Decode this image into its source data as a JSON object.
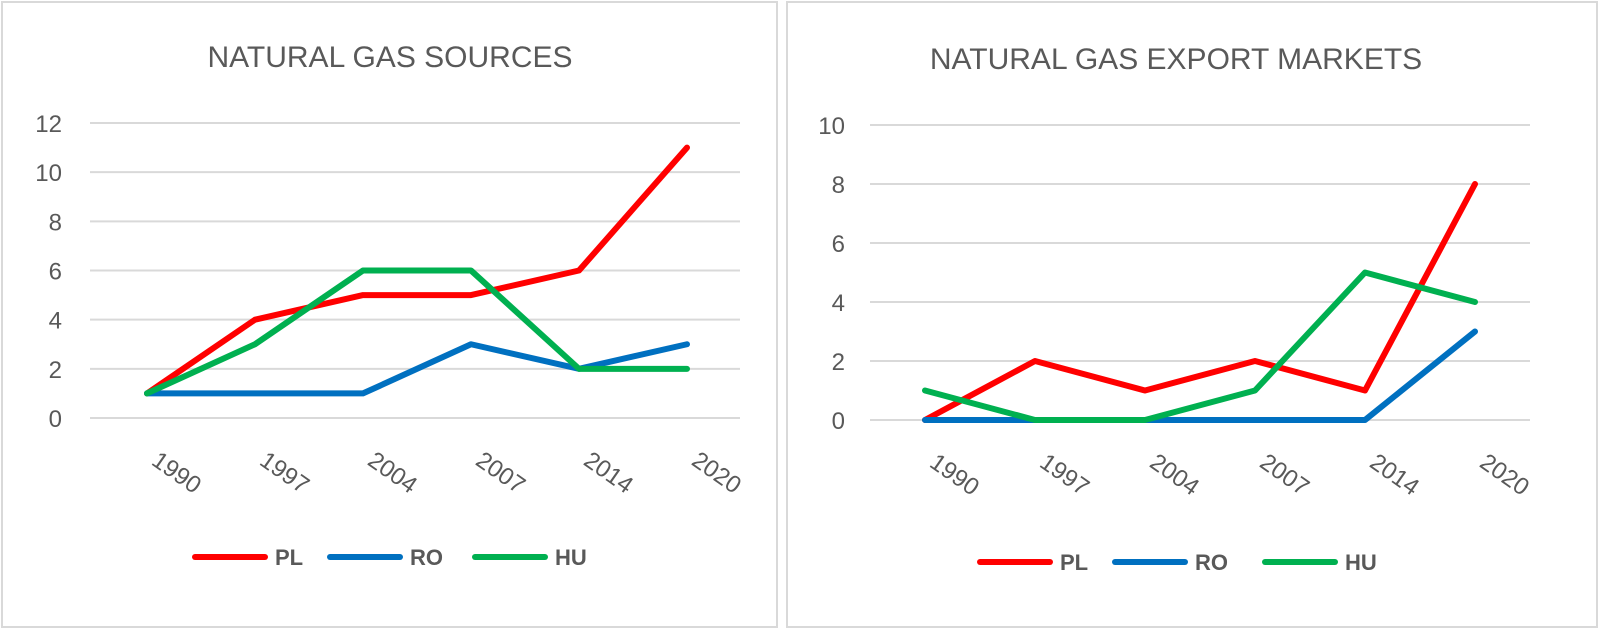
{
  "chart_data": [
    {
      "type": "line",
      "title": "NATURAL GAS SOURCES",
      "categories": [
        "1990",
        "1997",
        "2004",
        "2007",
        "2014",
        "2020"
      ],
      "ylim": [
        0,
        12
      ],
      "yticks": [
        "0",
        "2",
        "4",
        "6",
        "8",
        "10",
        "12"
      ],
      "grid": true,
      "legend_position": "bottom",
      "series": [
        {
          "name": "PL",
          "color": "#ff0000",
          "values": [
            1,
            4,
            5,
            5,
            6,
            11
          ]
        },
        {
          "name": "RO",
          "color": "#0070c0",
          "values": [
            1,
            1,
            1,
            3,
            2,
            3
          ]
        },
        {
          "name": "HU",
          "color": "#00b050",
          "values": [
            1,
            3,
            6,
            6,
            2,
            2
          ]
        }
      ]
    },
    {
      "type": "line",
      "title": "NATURAL GAS EXPORT MARKETS",
      "categories": [
        "1990",
        "1997",
        "2004",
        "2007",
        "2014",
        "2020"
      ],
      "ylim": [
        0,
        10
      ],
      "yticks": [
        "0",
        "2",
        "4",
        "6",
        "8",
        "10"
      ],
      "grid": true,
      "legend_position": "bottom",
      "series": [
        {
          "name": "PL",
          "color": "#ff0000",
          "values": [
            0,
            2,
            1,
            2,
            1,
            8
          ]
        },
        {
          "name": "RO",
          "color": "#0070c0",
          "values": [
            0,
            0,
            0,
            0,
            0,
            3
          ]
        },
        {
          "name": "HU",
          "color": "#00b050",
          "values": [
            1,
            0,
            0,
            1,
            5,
            4
          ]
        }
      ]
    }
  ]
}
